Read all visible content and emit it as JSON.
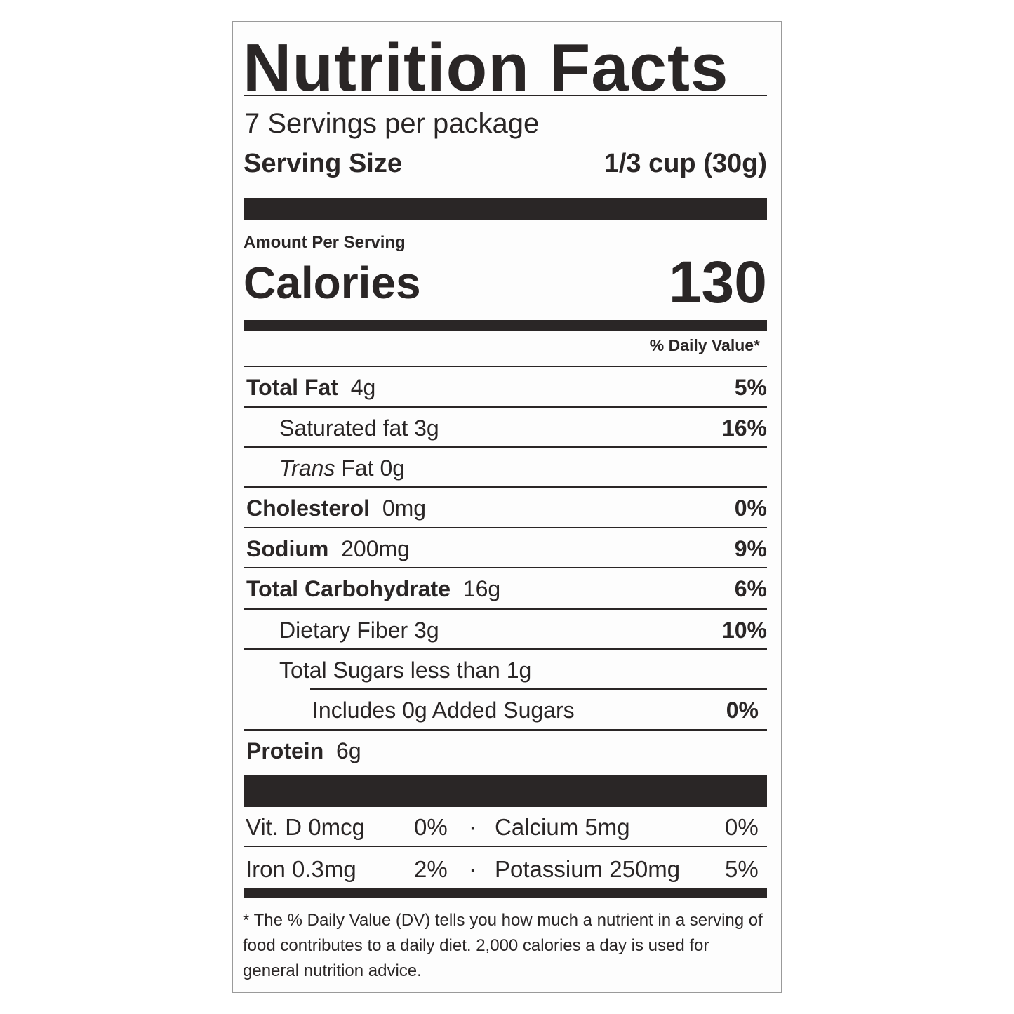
{
  "title": "Nutrition Facts",
  "servings_per_package": "7 Servings per package",
  "serving_size": {
    "label": "Serving Size",
    "value": "1/3 cup (30g)"
  },
  "amount_per_serving": "Amount Per Serving",
  "calories": {
    "label": "Calories",
    "value": "130"
  },
  "daily_value_header": "% Daily Value*",
  "nutrients": [
    {
      "name": "Total Fat",
      "amount": "4g",
      "dv": "5%",
      "bold": true,
      "indent": 0
    },
    {
      "name": "Saturated fat",
      "amount": "3g",
      "dv": "16%",
      "bold": false,
      "indent": 1
    },
    {
      "name": "Trans",
      "name_suffix": "Fat",
      "amount": "0g",
      "dv": "",
      "bold": false,
      "indent": 1
    },
    {
      "name": "Cholesterol",
      "amount": "0mg",
      "dv": "0%",
      "bold": true,
      "indent": 0
    },
    {
      "name": "Sodium",
      "amount": "200mg",
      "dv": "9%",
      "bold": true,
      "indent": 0
    },
    {
      "name": "Total Carbohydrate",
      "amount": "16g",
      "dv": "6%",
      "bold": true,
      "indent": 0
    },
    {
      "name": "Dietary Fiber",
      "amount": "3g",
      "dv": "10%",
      "bold": false,
      "indent": 1
    },
    {
      "name": "Total Sugars",
      "amount": "less than 1g",
      "dv": "",
      "bold": false,
      "indent": 1
    },
    {
      "name": "Includes",
      "amount": "0g Added Sugars",
      "dv": "0%",
      "bold": false,
      "indent": 2
    },
    {
      "name": "Protein",
      "amount": "6g",
      "dv": "",
      "bold": true,
      "indent": 0
    }
  ],
  "vitamins": [
    {
      "left": "Vit. D 0mcg",
      "left_dv": "0%",
      "sep": "·",
      "right": "Calcium 5mg",
      "right_dv": "0%"
    },
    {
      "left": "Iron 0.3mg",
      "left_dv": "2%",
      "sep": "·",
      "right": "Potassium 250mg",
      "right_dv": "5%"
    }
  ],
  "footnote": "* The % Daily Value (DV) tells you how much a nutrient in a serving of food contributes to a daily diet. 2,000 calories a day is used for general nutrition advice."
}
